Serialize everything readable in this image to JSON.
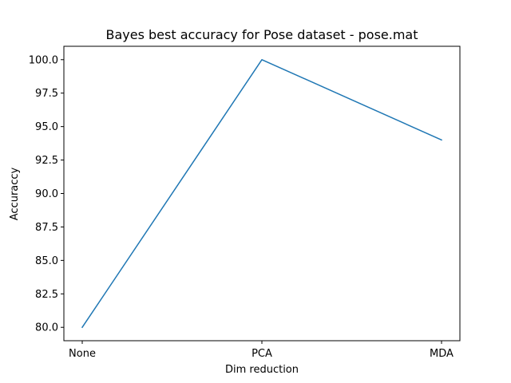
{
  "chart_data": {
    "type": "line",
    "title": "Bayes best accuracy for Pose dataset - pose.mat",
    "xlabel": "Dim reduction",
    "ylabel": "Accuraccy",
    "categories": [
      "None",
      "PCA",
      "MDA"
    ],
    "series": [
      {
        "values": [
          80.0,
          100.0,
          94.0
        ],
        "color": "#1f77b4"
      }
    ],
    "ylim": [
      79.0,
      101.0
    ],
    "yticks": [
      80.0,
      82.5,
      85.0,
      87.5,
      90.0,
      92.5,
      95.0,
      97.5,
      100.0
    ],
    "ytick_labels": [
      "80.0",
      "82.5",
      "85.0",
      "87.5",
      "90.0",
      "92.5",
      "95.0",
      "97.5",
      "100.0"
    ],
    "grid": false,
    "legend": "none"
  }
}
